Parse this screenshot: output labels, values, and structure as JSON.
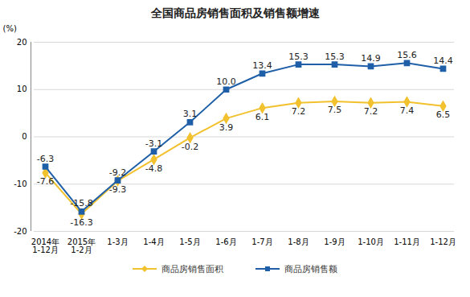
{
  "chart_data": {
    "type": "line",
    "title": "全国商品房销售面积及销售额增速",
    "y_label": "(%)",
    "categories": [
      "2014年\n1-12月",
      "2015年\n1-2月",
      "1-3月",
      "1-4月",
      "1-5月",
      "1-6月",
      "1-7月",
      "1-8月",
      "1-9月",
      "1-10月",
      "1-11月",
      "1-12月"
    ],
    "series": [
      {
        "name": "商品房销售面积",
        "color": "#f2c12e",
        "marker": "diamond",
        "values": [
          -7.6,
          -16.3,
          -9.3,
          -4.8,
          -0.2,
          3.9,
          6.1,
          7.2,
          7.5,
          7.2,
          7.4,
          6.5
        ]
      },
      {
        "name": "商品房销售额",
        "color": "#1f5fa8",
        "marker": "square",
        "values": [
          -6.3,
          -15.8,
          -9.2,
          -3.1,
          3.1,
          10.0,
          13.4,
          15.3,
          15.3,
          14.9,
          15.6,
          14.4
        ],
        "value_labels": [
          "-6.3",
          "-15.8",
          "-9.2",
          "-3.1",
          "3.1",
          "10.0",
          "13.4",
          "15.3",
          "15.3",
          "14.9",
          "15.6",
          "14.4"
        ]
      }
    ],
    "ylim": [
      -20,
      20
    ],
    "yticks": [
      -20,
      -10,
      0,
      10,
      20
    ],
    "grid": true,
    "legend": "bottom",
    "data_labels": true
  }
}
